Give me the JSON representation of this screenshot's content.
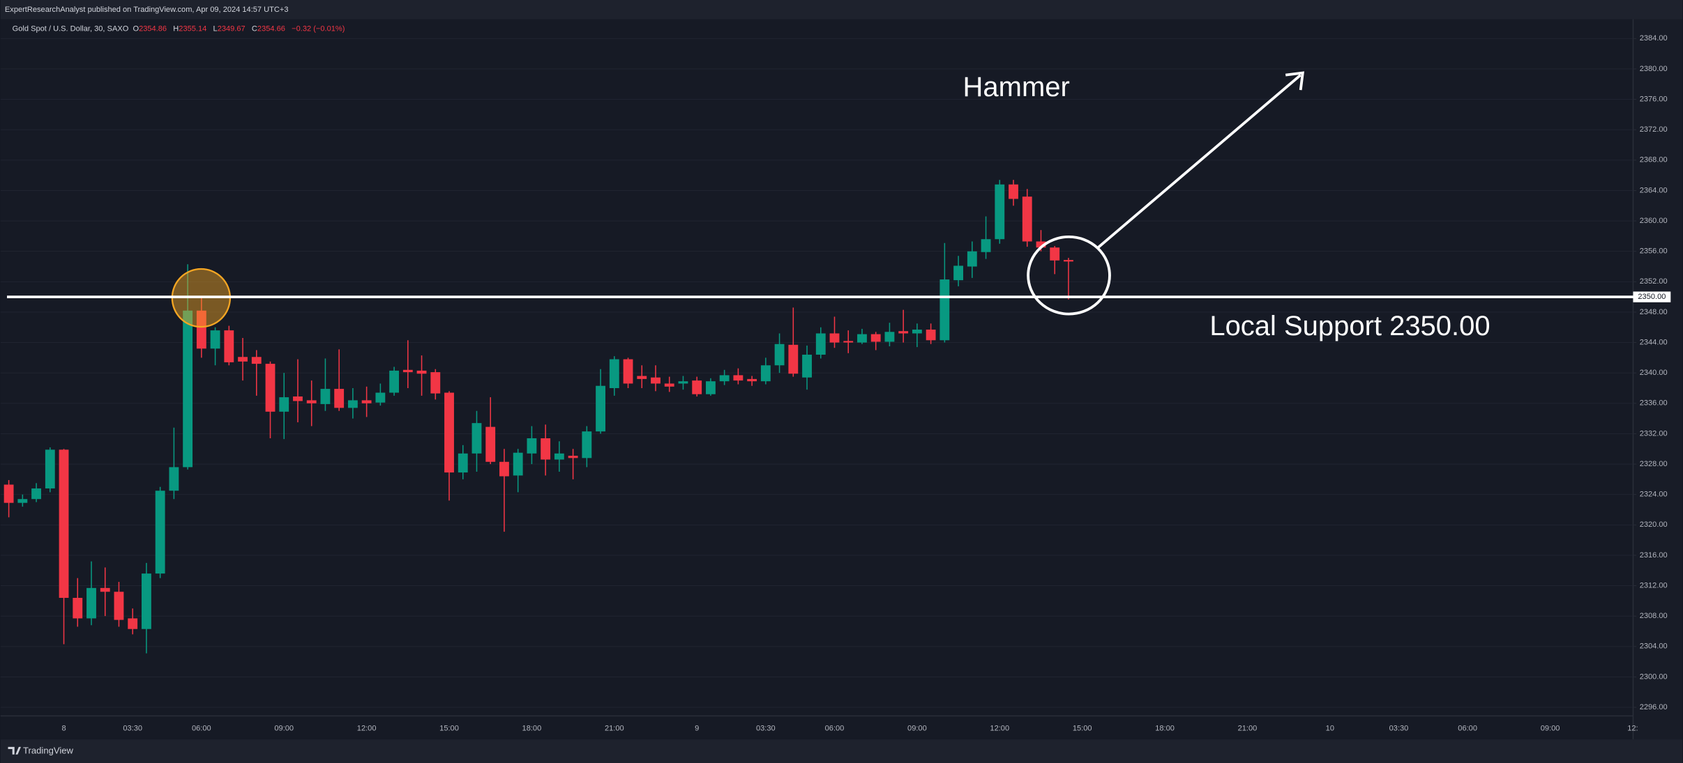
{
  "chart_data": {
    "type": "candlestick",
    "publisher_note": "ExpertResearchAnalyst published on TradingView.com, Apr 09, 2024 14:57 UTC+3",
    "title": "Gold Spot / U.S. Dollar, 30, SAXO",
    "ohlc_letters": [
      "O",
      "H",
      "L",
      "C"
    ],
    "change_label": "−0.32 (−0.01%)",
    "watermark": "TradingView",
    "annotations": {
      "hammer": "Hammer",
      "support_note": "Local Support 2350.00"
    },
    "support": {
      "value": 2350,
      "label": "2350.00"
    },
    "up_color": "#089981",
    "down_color": "#f23645",
    "grid": true,
    "ylim": [
      2295,
      2387
    ],
    "yticks": [
      {
        "value": 2296,
        "label": "2296.00"
      },
      {
        "value": 2300,
        "label": "2300.00"
      },
      {
        "value": 2304,
        "label": "2304.00"
      },
      {
        "value": 2308,
        "label": "2308.00"
      },
      {
        "value": 2312,
        "label": "2312.00"
      },
      {
        "value": 2316,
        "label": "2316.00"
      },
      {
        "value": 2320,
        "label": "2320.00"
      },
      {
        "value": 2324,
        "label": "2324.00"
      },
      {
        "value": 2328,
        "label": "2328.00"
      },
      {
        "value": 2332,
        "label": "2332.00"
      },
      {
        "value": 2336,
        "label": "2336.00"
      },
      {
        "value": 2340,
        "label": "2340.00"
      },
      {
        "value": 2344,
        "label": "2344.00"
      },
      {
        "value": 2348,
        "label": "2348.00"
      },
      {
        "value": 2352,
        "label": "2352.00"
      },
      {
        "value": 2356,
        "label": "2356.00"
      },
      {
        "value": 2360,
        "label": "2360.00"
      },
      {
        "value": 2364,
        "label": "2364.00"
      },
      {
        "value": 2368,
        "label": "2368.00"
      },
      {
        "value": 2372,
        "label": "2372.00"
      },
      {
        "value": 2376,
        "label": "2376.00"
      },
      {
        "value": 2380,
        "label": "2380.00"
      },
      {
        "value": 2384,
        "label": "2384.00"
      }
    ],
    "categories": [
      null,
      null,
      null,
      null,
      "8",
      null,
      null,
      null,
      null,
      "03:30",
      null,
      null,
      null,
      null,
      "06:00",
      null,
      null,
      null,
      null,
      null,
      "09:00",
      null,
      null,
      null,
      null,
      null,
      "12:00",
      null,
      null,
      null,
      null,
      null,
      "15:00",
      null,
      null,
      null,
      null,
      null,
      "18:00",
      null,
      null,
      null,
      null,
      null,
      "21:00",
      null,
      null,
      null,
      null,
      null,
      "9",
      null,
      null,
      null,
      null,
      "03:30",
      null,
      null,
      null,
      null,
      "06:00",
      null,
      null,
      null,
      null,
      null,
      "09:00",
      null,
      null,
      null,
      null,
      null,
      "12:00",
      null,
      null,
      null,
      null,
      null,
      "15:00",
      null,
      null,
      null,
      null,
      null,
      "18:00",
      null,
      null,
      null,
      null,
      null,
      "21:00",
      null,
      null,
      null,
      null,
      null,
      "10",
      null,
      null,
      null,
      null,
      "03:30",
      null,
      null,
      null,
      null,
      "06:00",
      null,
      null,
      null,
      null,
      null,
      "09:00",
      null,
      null,
      null,
      null,
      null,
      "12:"
    ],
    "open": [
      2325.3,
      2322.9,
      2323.4,
      2324.8,
      2329.9,
      2310.4,
      2307.7,
      2311.7,
      2311.2,
      2307.7,
      2306.3,
      2313.6,
      2324.5,
      2327.6,
      2348.2,
      2343.2,
      2345.6,
      2342.1,
      2342.1,
      2341.2,
      2334.9,
      2336.9,
      2336.4,
      2335.9,
      2337.9,
      2335.4,
      2336.4,
      2336.1,
      2337.4,
      2340.4,
      2340.3,
      2340.1,
      2337.4,
      2326.9,
      2329.4,
      2332.9,
      2328.3,
      2326.5,
      2329.4,
      2331.4,
      2328.6,
      2329.1,
      2328.8,
      2332.3,
      2338.0,
      2341.8,
      2339.6,
      2339.4,
      2338.6,
      2338.6,
      2339.0,
      2337.2,
      2338.9,
      2339.7,
      2339.2,
      2338.9,
      2341.0,
      2343.7,
      2339.4,
      2342.4,
      2345.2,
      2344.2,
      2344.0,
      2345.1,
      2344.1,
      2345.5,
      2345.2,
      2345.7,
      2344.3,
      2352.2,
      2354.0,
      2355.9,
      2357.6,
      2364.8,
      2363.2,
      2357.3,
      2356.5,
      2354.86,
      null,
      null,
      null,
      null,
      null,
      null,
      null,
      null,
      null,
      null,
      null,
      null,
      null,
      null,
      null,
      null,
      null,
      null,
      null,
      null,
      null,
      null,
      null,
      null,
      null,
      null,
      null,
      null,
      null,
      null,
      null,
      null,
      null,
      null,
      null,
      null,
      null,
      null,
      null,
      null,
      null
    ],
    "high": [
      2325.9,
      2324.0,
      2325.5,
      2330.2,
      2330.0,
      2313.0,
      2315.2,
      2314.4,
      2312.5,
      2309.0,
      2315.0,
      2325.0,
      2332.8,
      2354.3,
      2350.0,
      2346.0,
      2346.2,
      2344.6,
      2343.0,
      2341.5,
      2340.0,
      2341.8,
      2339.0,
      2341.9,
      2343.1,
      2338.0,
      2338.2,
      2338.6,
      2340.8,
      2344.3,
      2342.3,
      2340.5,
      2337.6,
      2330.5,
      2335.0,
      2336.8,
      2330.0,
      2330.0,
      2333.0,
      2333.2,
      2331.0,
      2330.0,
      2333.0,
      2340.5,
      2342.2,
      2342.0,
      2341.0,
      2341.0,
      2339.5,
      2339.6,
      2339.5,
      2339.3,
      2340.4,
      2340.6,
      2339.6,
      2342.0,
      2345.2,
      2348.6,
      2343.6,
      2346.0,
      2347.4,
      2345.6,
      2345.8,
      2345.4,
      2346.6,
      2348.3,
      2346.5,
      2346.5,
      2357.1,
      2355.4,
      2357.3,
      2360.6,
      2365.4,
      2365.4,
      2364.2,
      2358.8,
      2356.7,
      2355.14,
      null,
      null,
      null,
      null,
      null,
      null,
      null,
      null,
      null,
      null,
      null,
      null,
      null,
      null,
      null,
      null,
      null,
      null,
      null,
      null,
      null,
      null,
      null,
      null,
      null,
      null,
      null,
      null,
      null,
      null,
      null,
      null,
      null,
      null,
      null,
      null,
      null,
      null,
      null,
      null,
      null
    ],
    "low": [
      2321.0,
      2322.4,
      2323.0,
      2324.3,
      2304.3,
      2306.6,
      2306.8,
      2308.0,
      2306.6,
      2305.6,
      2303.1,
      2313.0,
      2323.4,
      2327.3,
      2342.0,
      2341.0,
      2341.0,
      2339.0,
      2337.0,
      2331.4,
      2331.3,
      2333.5,
      2333.0,
      2335.0,
      2335.0,
      2334.0,
      2334.2,
      2335.7,
      2337.0,
      2338.0,
      2337.0,
      2336.5,
      2323.2,
      2326.0,
      2327.0,
      2328.0,
      2319.1,
      2324.3,
      2328.0,
      2326.5,
      2327.0,
      2326.0,
      2327.6,
      2332.0,
      2337.0,
      2338.0,
      2338.0,
      2337.6,
      2337.5,
      2337.8,
      2336.9,
      2337.0,
      2338.4,
      2338.5,
      2338.3,
      2338.5,
      2340.0,
      2339.5,
      2337.8,
      2341.9,
      2343.3,
      2342.6,
      2343.8,
      2343.0,
      2343.5,
      2344.0,
      2343.4,
      2343.8,
      2344.0,
      2351.4,
      2352.5,
      2355.0,
      2357.0,
      2362.0,
      2356.6,
      2356.0,
      2353.0,
      2349.67,
      null,
      null,
      null,
      null,
      null,
      null,
      null,
      null,
      null,
      null,
      null,
      null,
      null,
      null,
      null,
      null,
      null,
      null,
      null,
      null,
      null,
      null,
      null,
      null,
      null,
      null,
      null,
      null,
      null,
      null,
      null,
      null,
      null,
      null,
      null,
      null,
      null,
      null,
      null,
      null,
      null
    ],
    "close": [
      2322.9,
      2323.4,
      2324.8,
      2329.9,
      2310.4,
      2307.7,
      2311.7,
      2311.2,
      2307.5,
      2306.3,
      2313.6,
      2324.5,
      2327.6,
      2348.2,
      2343.2,
      2345.6,
      2341.4,
      2341.5,
      2341.2,
      2334.9,
      2336.8,
      2336.3,
      2336.0,
      2337.9,
      2335.4,
      2336.4,
      2336.0,
      2337.4,
      2340.3,
      2340.1,
      2339.9,
      2337.3,
      2326.9,
      2329.4,
      2333.4,
      2328.3,
      2326.4,
      2329.5,
      2331.4,
      2328.6,
      2329.4,
      2328.8,
      2332.3,
      2338.3,
      2341.8,
      2338.6,
      2339.2,
      2338.6,
      2338.2,
      2338.9,
      2337.2,
      2338.9,
      2339.7,
      2339.0,
      2338.9,
      2341.0,
      2343.8,
      2339.9,
      2342.4,
      2345.2,
      2344.0,
      2344.0,
      2345.1,
      2344.1,
      2345.4,
      2345.2,
      2345.7,
      2344.3,
      2352.3,
      2354.1,
      2356.0,
      2357.6,
      2364.8,
      2362.9,
      2357.3,
      2356.5,
      2354.8,
      2354.66,
      null,
      null,
      null,
      null,
      null,
      null,
      null,
      null,
      null,
      null,
      null,
      null,
      null,
      null,
      null,
      null,
      null,
      null,
      null,
      null,
      null,
      null,
      null,
      null,
      null,
      null,
      null,
      null,
      null,
      null,
      null,
      null,
      null,
      null,
      null,
      null,
      null,
      null,
      null,
      null,
      null
    ]
  }
}
